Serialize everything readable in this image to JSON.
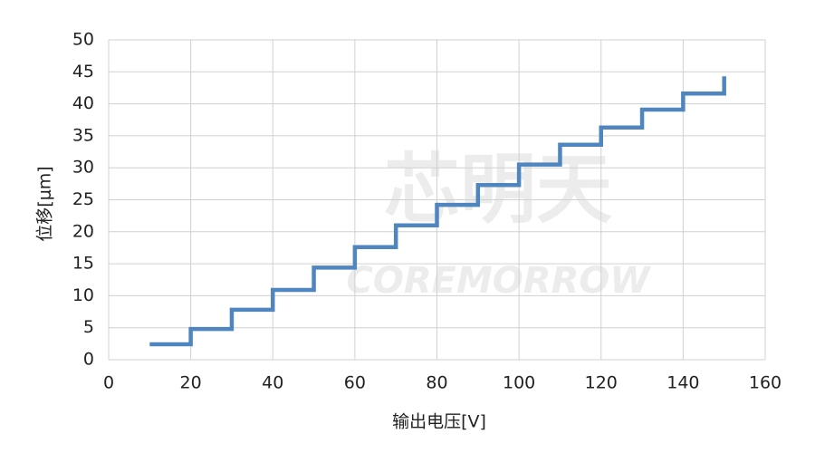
{
  "chart_data": {
    "type": "line",
    "watermark": [
      "芯明天",
      "COREMORROW"
    ],
    "x_label": "输出电压[V]",
    "y_label": "位移[μm]",
    "x": [
      10,
      20,
      20,
      30,
      30,
      40,
      40,
      50,
      50,
      60,
      60,
      70,
      70,
      80,
      80,
      90,
      90,
      100,
      100,
      110,
      110,
      120,
      120,
      130,
      130,
      140,
      140,
      150,
      150
    ],
    "series": [
      {
        "color": "#4f86bf",
        "values": [
          2.4,
          2.4,
          4.8,
          4.8,
          7.8,
          7.8,
          10.9,
          10.9,
          14.4,
          14.4,
          17.6,
          17.6,
          21.0,
          21.0,
          24.2,
          24.2,
          27.3,
          27.3,
          30.5,
          30.5,
          33.6,
          33.6,
          36.3,
          36.3,
          39.1,
          39.1,
          41.6,
          41.6,
          44.3
        ]
      }
    ],
    "xlim": [
      0,
      160
    ],
    "xticks": [
      0,
      20,
      40,
      60,
      80,
      100,
      120,
      140,
      160
    ],
    "ylim": [
      0,
      50
    ],
    "yticks": [
      0,
      5,
      10,
      15,
      20,
      25,
      30,
      35,
      40,
      45,
      50
    ],
    "grid": true
  }
}
